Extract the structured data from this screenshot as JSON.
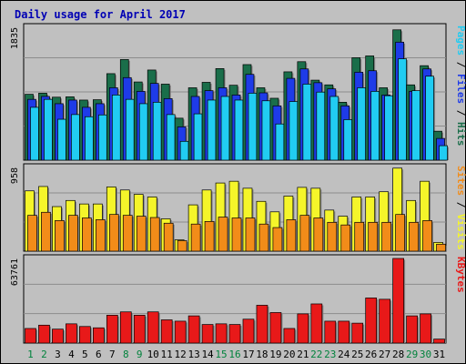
{
  "chart_data": {
    "type": "bar",
    "title": "Daily usage for April 2017",
    "categories": [
      "1",
      "2",
      "3",
      "4",
      "5",
      "6",
      "7",
      "8",
      "9",
      "10",
      "11",
      "12",
      "13",
      "14",
      "15",
      "16",
      "17",
      "18",
      "19",
      "20",
      "21",
      "22",
      "23",
      "24",
      "25",
      "26",
      "27",
      "28",
      "29",
      "30",
      "31"
    ],
    "weekend_days": [
      "1",
      "2",
      "8",
      "9",
      "15",
      "16",
      "22",
      "23",
      "29",
      "30"
    ],
    "panels": [
      {
        "name": "hits",
        "ymax_label": "1835",
        "ylim": [
          0,
          1835
        ],
        "legend": [
          "Pages",
          "Files",
          "Hits"
        ],
        "series": [
          {
            "name": "Hits",
            "color": "#1a6e4a",
            "values": [
              910,
              925,
              870,
              875,
              830,
              835,
              1195,
              1390,
              1080,
              1245,
              1050,
              580,
              1000,
              1075,
              1265,
              1035,
              1320,
              1000,
              855,
              1220,
              1360,
              1105,
              1040,
              800,
              1415,
              1440,
              1000,
              1800,
              1040,
              1305,
              400
            ]
          },
          {
            "name": "Files",
            "color": "#1e3be8",
            "values": [
              840,
              880,
              780,
              830,
              730,
              780,
              1000,
              1140,
              950,
              1060,
              850,
              460,
              880,
              960,
              1000,
              900,
              1185,
              930,
              750,
              1130,
              1260,
              1070,
              985,
              750,
              1215,
              1235,
              900,
              1630,
              950,
              1260,
              300
            ]
          },
          {
            "name": "Pages",
            "color": "#21ccf2",
            "values": [
              730,
              840,
              565,
              630,
              600,
              625,
              900,
              840,
              780,
              800,
              630,
              260,
              640,
              830,
              880,
              830,
              925,
              820,
              500,
              810,
              1050,
              940,
              880,
              560,
              1000,
              950,
              890,
              1400,
              960,
              1160,
              200
            ]
          }
        ]
      },
      {
        "name": "visits",
        "ymax_label": "958",
        "ylim": [
          0,
          958
        ],
        "legend": [
          "Sites",
          "Visits"
        ],
        "series": [
          {
            "name": "Visits",
            "color": "#f5f52a",
            "values": [
              690,
              740,
              510,
              580,
              540,
              540,
              735,
              700,
              650,
              620,
              370,
              130,
              530,
              700,
              780,
              800,
              720,
              570,
              450,
              630,
              730,
              720,
              470,
              400,
              620,
              620,
              680,
              950,
              580,
              800,
              100
            ]
          },
          {
            "name": "Sites",
            "color": "#f28c19",
            "values": [
              410,
              445,
              350,
              410,
              380,
              360,
              420,
              410,
              400,
              385,
              320,
              120,
              310,
              340,
              390,
              380,
              380,
              310,
              270,
              360,
              410,
              380,
              330,
              300,
              330,
              330,
              330,
              420,
              330,
              350,
              80
            ]
          }
        ]
      },
      {
        "name": "kbytes",
        "ymax_label": "63761",
        "ylim": [
          0,
          63761
        ],
        "legend": [
          "KBytes"
        ],
        "series": [
          {
            "name": "KBytes",
            "color": "#e81919",
            "values": [
              11000,
              13500,
              10500,
              14500,
              12500,
              11500,
              21000,
              23500,
              21000,
              23500,
              17500,
              16500,
              20500,
              14000,
              14500,
              14000,
              18000,
              28500,
              23000,
              11000,
              22000,
              29500,
              16500,
              16500,
              15000,
              34000,
              33000,
              63761,
              20500,
              22000,
              3000
            ]
          }
        ]
      }
    ]
  }
}
